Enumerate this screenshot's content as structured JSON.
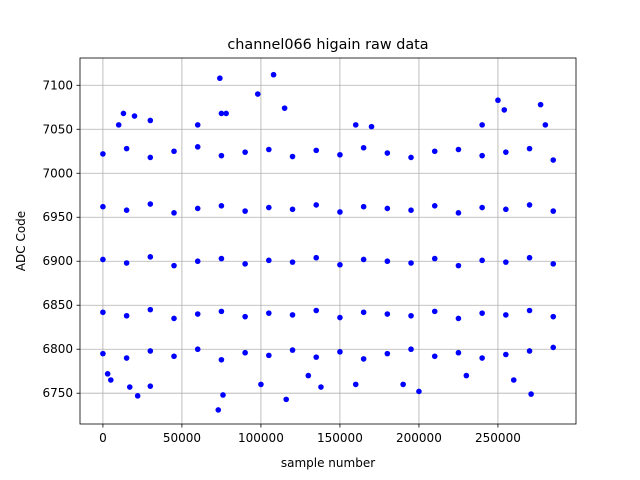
{
  "chart_data": {
    "type": "scatter",
    "title": "channel066 higain raw data",
    "x_label": "sample number",
    "y_label": "ADC Code",
    "xlim": [
      -14500,
      299400
    ],
    "ylim": [
      6715,
      7131
    ],
    "xticks": [
      0,
      50000,
      100000,
      150000,
      200000,
      250000
    ],
    "yticks": [
      6750,
      6800,
      6850,
      6900,
      6950,
      7000,
      7050,
      7100
    ],
    "grid": true,
    "color": "#0000ff",
    "x": [
      74000,
      108000,
      98000,
      250000,
      277000,
      115000,
      254000,
      13000,
      75000,
      78000,
      20000,
      30000,
      60000,
      160000,
      170000,
      280000,
      240000,
      10000,
      73000,
      116000,
      22000,
      76000,
      271000,
      200000,
      17000,
      30000,
      160000,
      100000,
      138000,
      260000,
      5000,
      3000,
      190000,
      130000,
      230000,
      0,
      15000,
      30000,
      45000,
      60000,
      75000,
      90000,
      105000,
      120000,
      135000,
      150000,
      165000,
      180000,
      195000,
      210000,
      225000,
      240000,
      255000,
      270000,
      285000,
      0,
      15000,
      30000,
      45000,
      60000,
      75000,
      90000,
      105000,
      120000,
      135000,
      150000,
      165000,
      180000,
      195000,
      210000,
      225000,
      240000,
      255000,
      270000,
      285000,
      0,
      15000,
      30000,
      45000,
      60000,
      75000,
      90000,
      105000,
      120000,
      135000,
      150000,
      165000,
      180000,
      195000,
      210000,
      225000,
      240000,
      255000,
      270000,
      285000,
      0,
      15000,
      30000,
      45000,
      60000,
      75000,
      90000,
      105000,
      120000,
      135000,
      150000,
      165000,
      180000,
      195000,
      210000,
      225000,
      240000,
      255000,
      270000,
      285000,
      0,
      15000,
      30000,
      45000,
      60000,
      75000,
      90000,
      105000,
      120000,
      135000,
      150000,
      165000,
      180000,
      195000,
      210000,
      225000,
      240000,
      255000,
      270000,
      285000
    ],
    "values": [
      7108,
      7112,
      7090,
      7083,
      7078,
      7074,
      7072,
      7068,
      7068,
      7068,
      7065,
      7060,
      7055,
      7055,
      7053,
      7055,
      7055,
      7055,
      6731,
      6743,
      6747,
      6748,
      6749,
      6752,
      6757,
      6758,
      6760,
      6760,
      6757,
      6765,
      6765,
      6772,
      6760,
      6770,
      6770,
      7022,
      7028,
      7018,
      7025,
      7030,
      7020,
      7024,
      7027,
      7019,
      7026,
      7021,
      7029,
      7023,
      7018,
      7025,
      7027,
      7020,
      7024,
      7028,
      7015,
      6962,
      6958,
      6965,
      6955,
      6960,
      6963,
      6957,
      6961,
      6959,
      6964,
      6956,
      6962,
      6960,
      6958,
      6963,
      6955,
      6961,
      6959,
      6964,
      6957,
      6902,
      6898,
      6905,
      6895,
      6900,
      6903,
      6897,
      6901,
      6899,
      6904,
      6896,
      6902,
      6900,
      6898,
      6903,
      6895,
      6901,
      6899,
      6904,
      6897,
      6842,
      6838,
      6845,
      6835,
      6840,
      6843,
      6837,
      6841,
      6839,
      6844,
      6836,
      6842,
      6840,
      6838,
      6843,
      6835,
      6841,
      6839,
      6844,
      6837,
      6795,
      6790,
      6798,
      6792,
      6800,
      6788,
      6796,
      6793,
      6799,
      6791,
      6797,
      6789,
      6795,
      6800,
      6792,
      6796,
      6790,
      6794,
      6798,
      6802
    ]
  }
}
